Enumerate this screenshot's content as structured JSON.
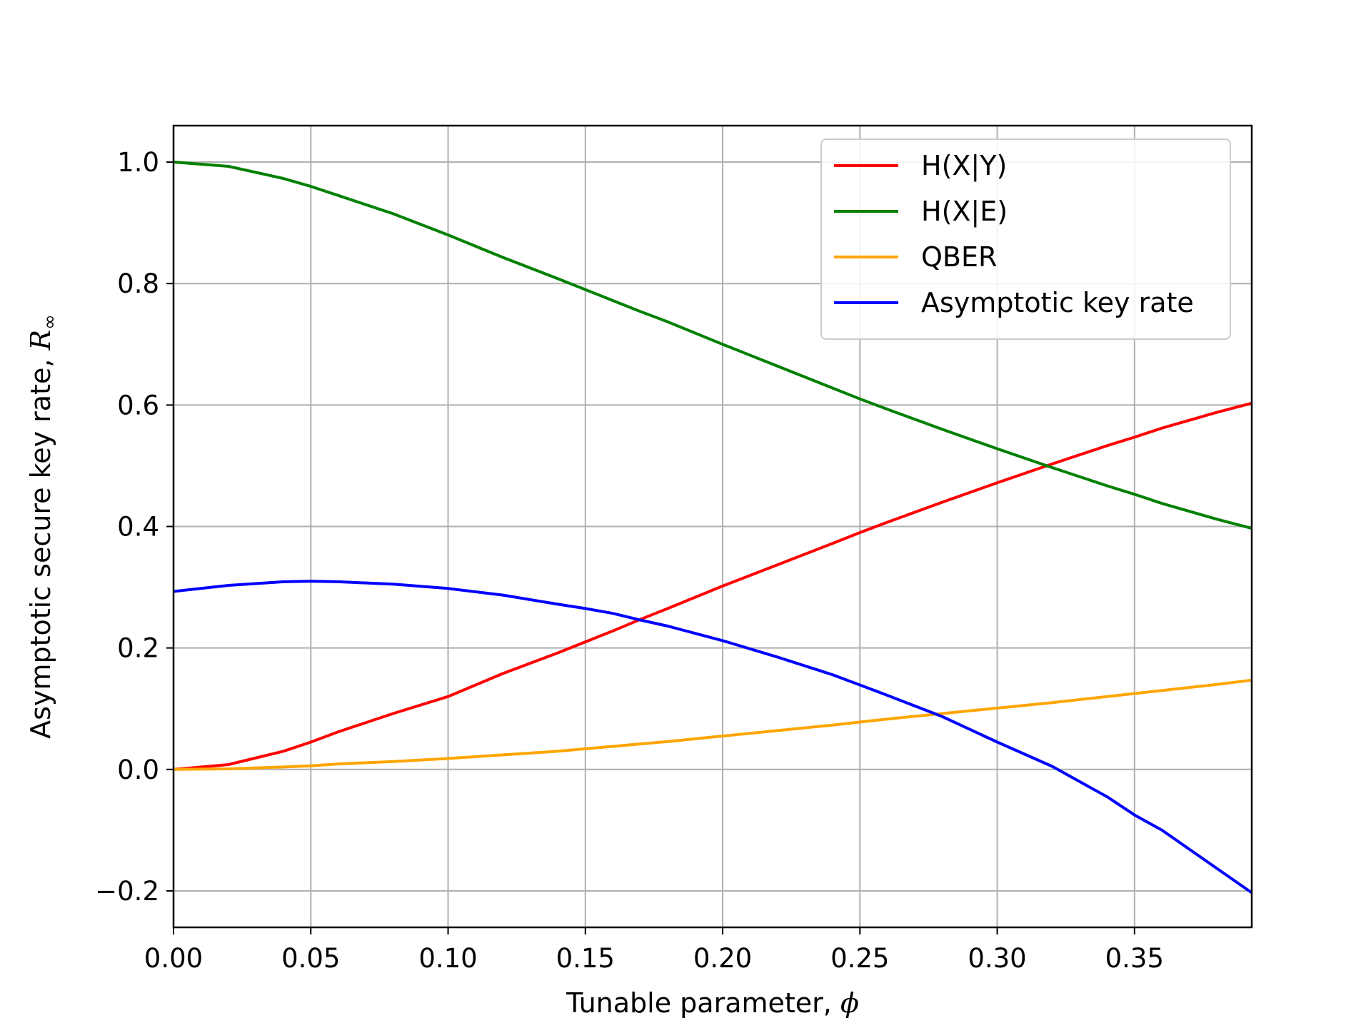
{
  "chart_data": {
    "type": "line",
    "xlabel": "Tunable parameter, ",
    "xlabel_symbol": "ϕ",
    "ylabel": "Asymptotic secure key rate, ",
    "ylabel_symbol": "R",
    "ylabel_subscript": "∞",
    "xlim": [
      0.0,
      0.3927
    ],
    "ylim": [
      -0.26,
      1.06
    ],
    "xticks": [
      0.0,
      0.05,
      0.1,
      0.15,
      0.2,
      0.25,
      0.3,
      0.35
    ],
    "xtick_labels": [
      "0.00",
      "0.05",
      "0.10",
      "0.15",
      "0.20",
      "0.25",
      "0.30",
      "0.35"
    ],
    "yticks": [
      -0.2,
      0.0,
      0.2,
      0.4,
      0.6,
      0.8,
      1.0
    ],
    "ytick_labels": [
      "−0.2",
      "0.0",
      "0.2",
      "0.4",
      "0.6",
      "0.8",
      "1.0"
    ],
    "grid": true,
    "legend_position": "top-right",
    "x": [
      0.0,
      0.02,
      0.04,
      0.05,
      0.06,
      0.08,
      0.1,
      0.12,
      0.14,
      0.15,
      0.16,
      0.17,
      0.18,
      0.2,
      0.22,
      0.24,
      0.25,
      0.26,
      0.28,
      0.3,
      0.32,
      0.34,
      0.35,
      0.36,
      0.38,
      0.3927
    ],
    "series": [
      {
        "name": "H(X|Y)",
        "color": "#ff0000",
        "values": [
          0.0,
          0.008,
          0.03,
          0.045,
          0.062,
          0.092,
          0.12,
          0.158,
          0.192,
          0.21,
          0.228,
          0.247,
          0.265,
          0.302,
          0.337,
          0.372,
          0.39,
          0.407,
          0.44,
          0.472,
          0.503,
          0.533,
          0.547,
          0.562,
          0.588,
          0.603
        ]
      },
      {
        "name": "H(X|E)",
        "color": "#008000",
        "values": [
          1.0,
          0.993,
          0.973,
          0.96,
          0.945,
          0.915,
          0.88,
          0.843,
          0.808,
          0.79,
          0.772,
          0.754,
          0.737,
          0.7,
          0.664,
          0.628,
          0.61,
          0.593,
          0.56,
          0.528,
          0.497,
          0.467,
          0.453,
          0.438,
          0.412,
          0.397
        ]
      },
      {
        "name": "QBER",
        "color": "#ffa500",
        "values": [
          0.0,
          0.001,
          0.004,
          0.006,
          0.009,
          0.013,
          0.018,
          0.024,
          0.03,
          0.034,
          0.038,
          0.042,
          0.046,
          0.055,
          0.064,
          0.073,
          0.078,
          0.083,
          0.092,
          0.101,
          0.11,
          0.12,
          0.125,
          0.13,
          0.14,
          0.147
        ]
      },
      {
        "name": "Asymptotic key rate",
        "color": "#0000ff",
        "values": [
          0.293,
          0.303,
          0.309,
          0.31,
          0.309,
          0.305,
          0.298,
          0.287,
          0.272,
          0.265,
          0.257,
          0.246,
          0.236,
          0.212,
          0.185,
          0.156,
          0.139,
          0.122,
          0.087,
          0.045,
          0.005,
          -0.045,
          -0.075,
          -0.1,
          -0.163,
          -0.203
        ]
      }
    ]
  }
}
